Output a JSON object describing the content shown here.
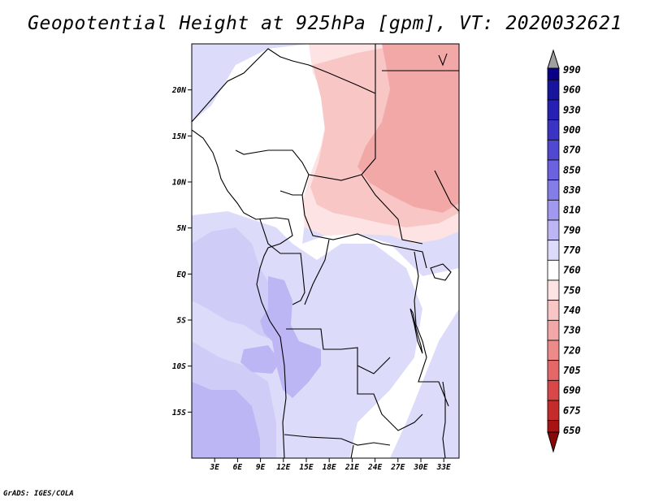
{
  "title": "Geopotential Height at 925hPa [gpm], VT: 2020032621",
  "footer": "GrADS: IGES/COLA",
  "map": {
    "lon_range": [
      0,
      35
    ],
    "lat_range": [
      -20,
      25
    ],
    "lat_ticks": [
      {
        "label": "20N",
        "value": 20
      },
      {
        "label": "15N",
        "value": 15
      },
      {
        "label": "10N",
        "value": 10
      },
      {
        "label": "5N",
        "value": 5
      },
      {
        "label": "EQ",
        "value": 0
      },
      {
        "label": "5S",
        "value": -5
      },
      {
        "label": "10S",
        "value": -10
      },
      {
        "label": "15S",
        "value": -15
      }
    ],
    "lon_ticks": [
      {
        "label": "3E",
        "value": 3
      },
      {
        "label": "6E",
        "value": 6
      },
      {
        "label": "9E",
        "value": 9
      },
      {
        "label": "12E",
        "value": 12
      },
      {
        "label": "15E",
        "value": 15
      },
      {
        "label": "18E",
        "value": 18
      },
      {
        "label": "21E",
        "value": 21
      },
      {
        "label": "24E",
        "value": 24
      },
      {
        "label": "27E",
        "value": 27
      },
      {
        "label": "30E",
        "value": 30
      },
      {
        "label": "33E",
        "value": 33
      }
    ]
  },
  "colorbar": {
    "levels": [
      {
        "label": "990",
        "color": "#0a0088"
      },
      {
        "label": "960",
        "color": "#17149e"
      },
      {
        "label": "930",
        "color": "#2621b4"
      },
      {
        "label": "900",
        "color": "#3a33c4"
      },
      {
        "label": "870",
        "color": "#5148d2"
      },
      {
        "label": "850",
        "color": "#6a62de"
      },
      {
        "label": "830",
        "color": "#847de8"
      },
      {
        "label": "810",
        "color": "#a199ef"
      },
      {
        "label": "790",
        "color": "#bcb6f5"
      },
      {
        "label": "770",
        "color": "#dcdcfa"
      },
      {
        "label": "760",
        "color": "#ffffff"
      },
      {
        "label": "750",
        "color": "#fde3e3"
      },
      {
        "label": "740",
        "color": "#f9c6c6"
      },
      {
        "label": "730",
        "color": "#f3a8a8"
      },
      {
        "label": "720",
        "color": "#ed8a8a"
      },
      {
        "label": "705",
        "color": "#e46868"
      },
      {
        "label": "690",
        "color": "#d84848"
      },
      {
        "label": "675",
        "color": "#c42c2c"
      },
      {
        "label": "650",
        "color": "#a81414"
      }
    ],
    "top_color": "#a0a0a0",
    "bottom_color": "#880808"
  },
  "fields": {
    "blue_light": "#dcdcfa",
    "blue_mid": "#cfcdf8",
    "blue_dark": "#bcb6f5",
    "white": "#ffffff",
    "pink_light": "#fde3e3",
    "pink_mid": "#f9c6c6",
    "pink_dark": "#f3a8a8",
    "line": "#000000"
  }
}
